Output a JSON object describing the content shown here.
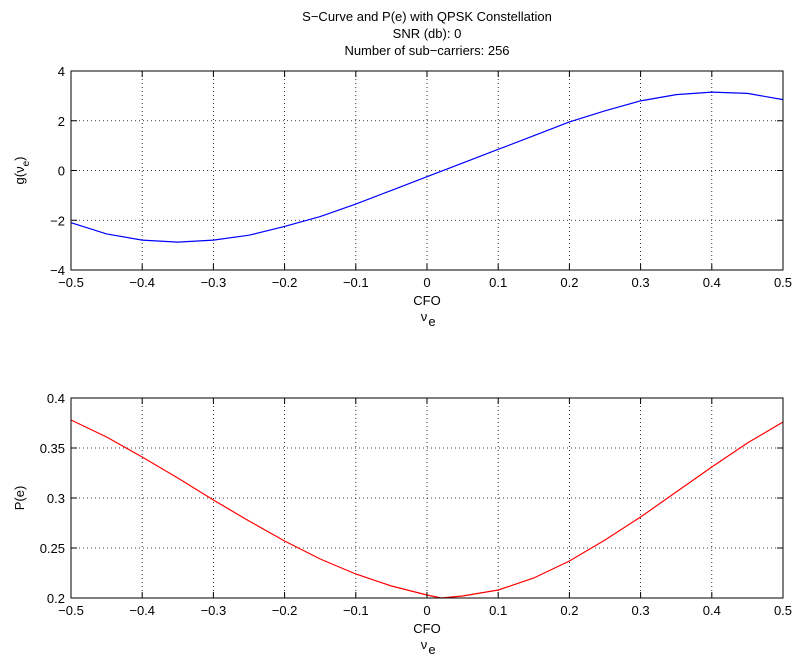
{
  "title_lines": [
    "S−Curve and P(e) with QPSK Constellation",
    "SNR (db): 0",
    "Number of sub−carriers: 256"
  ],
  "chart_data": [
    {
      "type": "line",
      "xlabel_lines": [
        "CFO",
        "ν"
      ],
      "xlabel_sub": "e",
      "ylabel": "g(ν",
      "ylabel_sub": "e",
      "ylabel_close": ")",
      "xlim": [
        -0.5,
        0.5
      ],
      "ylim": [
        -4,
        4
      ],
      "xticks": [
        -0.5,
        -0.4,
        -0.3,
        -0.2,
        -0.1,
        0,
        0.1,
        0.2,
        0.3,
        0.4,
        0.5
      ],
      "xtick_labels": [
        "−0.5",
        "−0.4",
        "−0.3",
        "−0.2",
        "−0.1",
        "0",
        "0.1",
        "0.2",
        "0.3",
        "0.4",
        "0.5"
      ],
      "yticks": [
        -4,
        -2,
        0,
        2,
        4
      ],
      "ytick_labels": [
        "−4",
        "−2",
        "0",
        "2",
        "4"
      ],
      "grid": true,
      "color": "#0000ff",
      "x": [
        -0.5,
        -0.45,
        -0.4,
        -0.35,
        -0.3,
        -0.25,
        -0.2,
        -0.15,
        -0.1,
        -0.05,
        0,
        0.05,
        0.1,
        0.15,
        0.2,
        0.25,
        0.3,
        0.35,
        0.4,
        0.45,
        0.5
      ],
      "y": [
        -2.1,
        -2.55,
        -2.8,
        -2.88,
        -2.8,
        -2.6,
        -2.25,
        -1.85,
        -1.35,
        -0.8,
        -0.25,
        0.3,
        0.85,
        1.4,
        1.95,
        2.4,
        2.8,
        3.05,
        3.15,
        3.1,
        2.85
      ]
    },
    {
      "type": "line",
      "xlabel_lines": [
        "CFO",
        "ν"
      ],
      "xlabel_sub": "e",
      "ylabel": "P(e)",
      "xlim": [
        -0.5,
        0.5
      ],
      "ylim": [
        0.2,
        0.4
      ],
      "xticks": [
        -0.5,
        -0.4,
        -0.3,
        -0.2,
        -0.1,
        0,
        0.1,
        0.2,
        0.3,
        0.4,
        0.5
      ],
      "xtick_labels": [
        "−0.5",
        "−0.4",
        "−0.3",
        "−0.2",
        "−0.1",
        "0",
        "0.1",
        "0.2",
        "0.3",
        "0.4",
        "0.5"
      ],
      "yticks": [
        0.2,
        0.25,
        0.3,
        0.35,
        0.4
      ],
      "ytick_labels": [
        "0.2",
        "0.25",
        "0.3",
        "0.35",
        "0.4"
      ],
      "grid": true,
      "color": "#ff0000",
      "x": [
        -0.5,
        -0.45,
        -0.4,
        -0.35,
        -0.3,
        -0.25,
        -0.2,
        -0.15,
        -0.1,
        -0.05,
        0,
        0.02,
        0.05,
        0.1,
        0.15,
        0.2,
        0.25,
        0.3,
        0.35,
        0.4,
        0.45,
        0.5
      ],
      "y": [
        0.378,
        0.361,
        0.341,
        0.32,
        0.298,
        0.277,
        0.257,
        0.239,
        0.224,
        0.212,
        0.203,
        0.2,
        0.202,
        0.208,
        0.22,
        0.237,
        0.258,
        0.281,
        0.306,
        0.331,
        0.355,
        0.376
      ]
    }
  ]
}
